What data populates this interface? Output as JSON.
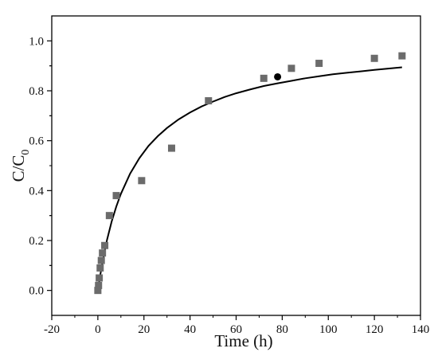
{
  "chart_data": {
    "type": "scatter",
    "xlabel": "Time (h)",
    "ylabel_main": "C/C",
    "ylabel_sub": "0",
    "xlim": [
      -20,
      140
    ],
    "ylim": [
      -0.1,
      1.1
    ],
    "xticks": [
      -20,
      0,
      20,
      40,
      60,
      80,
      100,
      120,
      140
    ],
    "xtick_labels": [
      "-20",
      "0",
      "20",
      "40",
      "60",
      "80",
      "100",
      "120",
      "140"
    ],
    "yticks": [
      0.0,
      0.2,
      0.4,
      0.6,
      0.8,
      1.0
    ],
    "ytick_labels": [
      "0.0",
      "0.2",
      "0.4",
      "0.6",
      "0.8",
      "1.0"
    ],
    "grid": false,
    "series": [
      {
        "type": "scatter",
        "marker": "square",
        "color": "#6b6b6b",
        "x": [
          0,
          0.3,
          0.6,
          1,
          1.5,
          2,
          3,
          5,
          8,
          19,
          32,
          48,
          72,
          84,
          96,
          120,
          132
        ],
        "y": [
          0.0,
          0.02,
          0.05,
          0.09,
          0.12,
          0.15,
          0.18,
          0.3,
          0.38,
          0.44,
          0.57,
          0.76,
          0.85,
          0.89,
          0.91,
          0.93,
          0.94
        ]
      },
      {
        "type": "line",
        "color": "#000000",
        "x": [
          0,
          1,
          2,
          4,
          6,
          8,
          10,
          14,
          18,
          22,
          26,
          30,
          35,
          40,
          45,
          50,
          55,
          60,
          66,
          72,
          78,
          84,
          90,
          96,
          102,
          108,
          114,
          120,
          126,
          132
        ],
        "y": [
          0.0,
          0.06,
          0.113,
          0.203,
          0.276,
          0.336,
          0.387,
          0.468,
          0.53,
          0.579,
          0.618,
          0.651,
          0.685,
          0.713,
          0.737,
          0.757,
          0.775,
          0.79,
          0.805,
          0.819,
          0.83,
          0.84,
          0.85,
          0.858,
          0.866,
          0.872,
          0.878,
          0.884,
          0.889,
          0.894
        ]
      },
      {
        "type": "marker",
        "marker": "circle",
        "color": "#000000",
        "x": [
          78
        ],
        "y": [
          0.856
        ]
      }
    ]
  }
}
